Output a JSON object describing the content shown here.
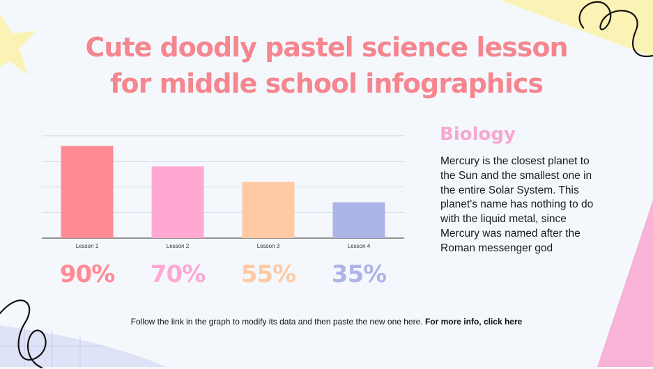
{
  "slide": {
    "title_line1": "Cute doodly pastel science lesson",
    "title_line2": "for middle school infographics",
    "heading": "Biology",
    "body": "Mercury is the closest planet to the Sun and the smallest one in the entire Solar System. This planet's name has nothing to do with the liquid metal, since Mercury was named after the Roman messenger god",
    "footer_text": "Follow the link in the graph to modify its data and then paste the new one here.",
    "footer_link": "For more info, click here",
    "percentages": [
      "90%",
      "70%",
      "55%",
      "35%"
    ]
  },
  "colors": {
    "title": "#f5868f",
    "heading": "#f6a8cf",
    "bars": [
      "#ff8a93",
      "#ffa8d2",
      "#ffc9a4",
      "#adb5e8"
    ],
    "background": "#f4f8fc",
    "deco_yellow": "#fbf3b6",
    "deco_pink": "#f9b3d6"
  },
  "chart_data": {
    "type": "bar",
    "categories": [
      "Lesson 1",
      "Lesson 2",
      "Lesson 3",
      "Lesson 4"
    ],
    "values": [
      90,
      70,
      55,
      35
    ],
    "ylim": [
      0,
      100
    ],
    "grid": true,
    "legend": "none"
  }
}
